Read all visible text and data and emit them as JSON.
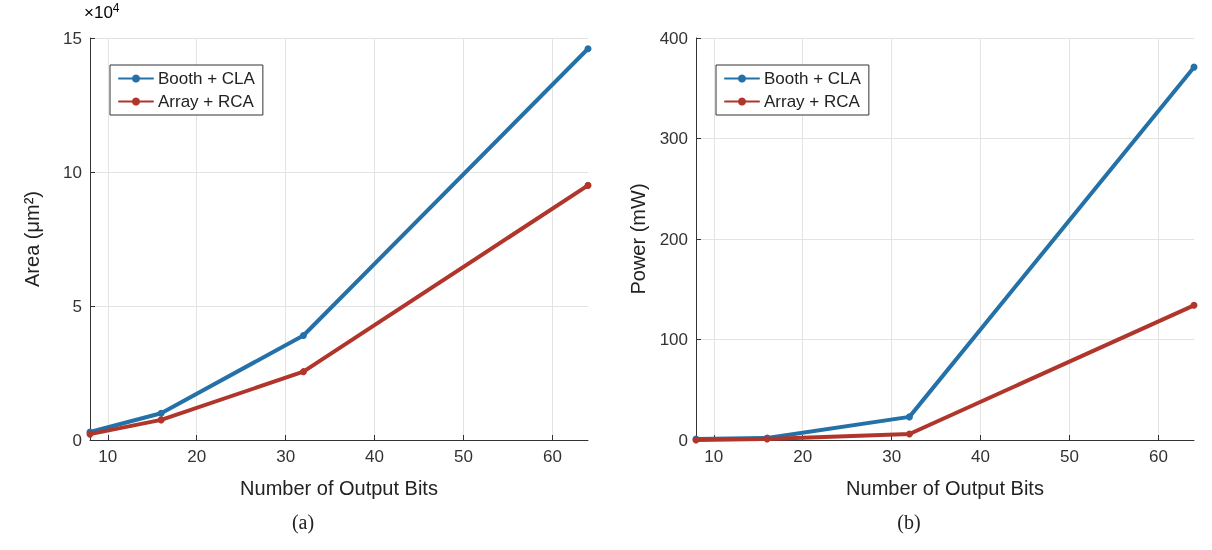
{
  "chart_data": [
    {
      "type": "line",
      "xlabel": "Number of Output Bits",
      "ylabel": "Area (μm²)",
      "x": [
        8,
        16,
        32,
        64
      ],
      "series": [
        {
          "name": "Booth + CLA",
          "color": "#2471a8",
          "values": [
            0.3,
            1.0,
            3.9,
            14.6
          ]
        },
        {
          "name": "Array + RCA",
          "color": "#b0352b",
          "values": [
            0.22,
            0.75,
            2.55,
            9.5
          ]
        }
      ],
      "xlim": [
        8,
        64
      ],
      "xticks": [
        10,
        20,
        30,
        40,
        50,
        60
      ],
      "ylim": [
        0,
        15
      ],
      "yticks": [
        0,
        5,
        10,
        15
      ],
      "grid": true,
      "legend": "top left",
      "marker": "circle",
      "line_style": "solid",
      "annotations": [
        "×10$^{4}$",
        "(a)"
      ]
    },
    {
      "type": "line",
      "xlabel": "Number of Output Bits",
      "ylabel": "Power (mW)",
      "x": [
        8,
        16,
        32,
        64
      ],
      "series": [
        {
          "name": "Booth + CLA",
          "color": "#2471a8",
          "values": [
            1,
            2,
            23,
            371
          ]
        },
        {
          "name": "Array + RCA",
          "color": "#b0352b",
          "values": [
            0,
            1,
            6,
            134
          ]
        }
      ],
      "xlim": [
        8,
        64
      ],
      "xticks": [
        10,
        20,
        30,
        40,
        50,
        60
      ],
      "ylim": [
        0,
        400
      ],
      "yticks": [
        0,
        100,
        200,
        300,
        400
      ],
      "grid": true,
      "legend": "top left",
      "marker": "circle",
      "line_style": "solid",
      "annotations": [
        "(b)"
      ]
    }
  ]
}
